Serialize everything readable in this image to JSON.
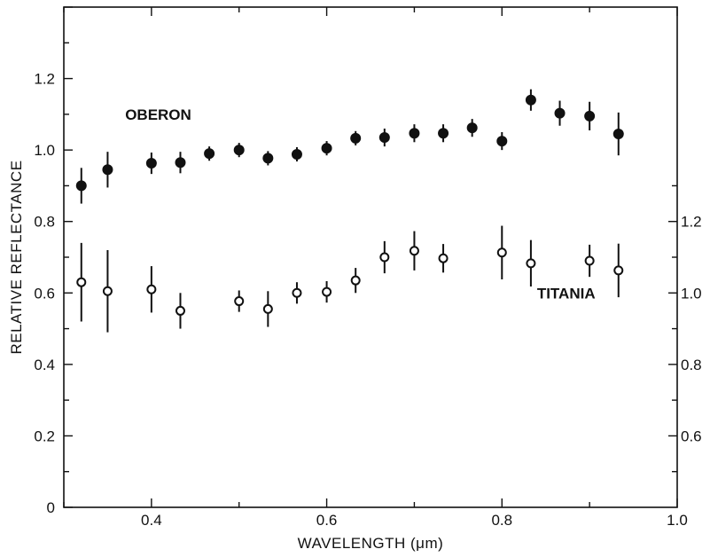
{
  "chart_data": {
    "type": "scatter",
    "title": "",
    "xlabel": "WAVELENGTH (μm)",
    "ylabel": "RELATIVE REFLECTANCE",
    "xlim": [
      0.3,
      1.0
    ],
    "ylim": [
      0,
      1.4
    ],
    "x_ticks": [
      {
        "value": 0.4,
        "label": "0.4"
      },
      {
        "value": 0.6,
        "label": "0.6"
      },
      {
        "value": 0.8,
        "label": "0.8"
      },
      {
        "value": 1.0,
        "label": "1.0"
      }
    ],
    "y_ticks_left": [
      {
        "value": 0,
        "label": "0"
      },
      {
        "value": 0.2,
        "label": "0.2"
      },
      {
        "value": 0.4,
        "label": "0.4"
      },
      {
        "value": 0.6,
        "label": "0.6"
      },
      {
        "value": 0.8,
        "label": "0.8"
      },
      {
        "value": 1.0,
        "label": "1.0"
      },
      {
        "value": 1.2,
        "label": "1.2"
      }
    ],
    "y_ticks_right": [
      {
        "value": 0.6,
        "label": "0.6"
      },
      {
        "value": 0.8,
        "label": "0.8"
      },
      {
        "value": 1.0,
        "label": "1.0"
      },
      {
        "value": 1.2,
        "label": "1.2"
      }
    ],
    "right_axis_offset": 0.4,
    "grid": false,
    "series": [
      {
        "name": "OBERON",
        "marker": "filled-circle",
        "axis": "left",
        "points": [
          {
            "x": 0.32,
            "y": 0.9,
            "err": 0.05
          },
          {
            "x": 0.35,
            "y": 0.945,
            "err": 0.05
          },
          {
            "x": 0.4,
            "y": 0.963,
            "err": 0.03
          },
          {
            "x": 0.433,
            "y": 0.965,
            "err": 0.03
          },
          {
            "x": 0.466,
            "y": 0.99,
            "err": 0.02
          },
          {
            "x": 0.5,
            "y": 1.0,
            "err": 0.02
          },
          {
            "x": 0.533,
            "y": 0.977,
            "err": 0.02
          },
          {
            "x": 0.566,
            "y": 0.988,
            "err": 0.02
          },
          {
            "x": 0.6,
            "y": 1.005,
            "err": 0.02
          },
          {
            "x": 0.633,
            "y": 1.033,
            "err": 0.02
          },
          {
            "x": 0.666,
            "y": 1.035,
            "err": 0.025
          },
          {
            "x": 0.7,
            "y": 1.047,
            "err": 0.025
          },
          {
            "x": 0.733,
            "y": 1.047,
            "err": 0.025
          },
          {
            "x": 0.766,
            "y": 1.062,
            "err": 0.025
          },
          {
            "x": 0.8,
            "y": 1.025,
            "err": 0.025
          },
          {
            "x": 0.833,
            "y": 1.14,
            "err": 0.03
          },
          {
            "x": 0.866,
            "y": 1.103,
            "err": 0.035
          },
          {
            "x": 0.9,
            "y": 1.095,
            "err": 0.04
          },
          {
            "x": 0.933,
            "y": 1.045,
            "err": 0.06
          }
        ]
      },
      {
        "name": "TITANIA",
        "marker": "open-circle",
        "axis": "right",
        "points": [
          {
            "x": 0.32,
            "y": 1.03,
            "err": 0.11
          },
          {
            "x": 0.35,
            "y": 1.005,
            "err": 0.115
          },
          {
            "x": 0.4,
            "y": 1.01,
            "err": 0.065
          },
          {
            "x": 0.433,
            "y": 0.95,
            "err": 0.05
          },
          {
            "x": 0.5,
            "y": 0.977,
            "err": 0.03
          },
          {
            "x": 0.533,
            "y": 0.955,
            "err": 0.05
          },
          {
            "x": 0.566,
            "y": 1.0,
            "err": 0.03
          },
          {
            "x": 0.6,
            "y": 1.003,
            "err": 0.03
          },
          {
            "x": 0.633,
            "y": 1.035,
            "err": 0.035
          },
          {
            "x": 0.666,
            "y": 1.1,
            "err": 0.045
          },
          {
            "x": 0.7,
            "y": 1.118,
            "err": 0.055
          },
          {
            "x": 0.733,
            "y": 1.097,
            "err": 0.04
          },
          {
            "x": 0.8,
            "y": 1.113,
            "err": 0.075
          },
          {
            "x": 0.833,
            "y": 1.083,
            "err": 0.065
          },
          {
            "x": 0.9,
            "y": 1.09,
            "err": 0.045
          },
          {
            "x": 0.933,
            "y": 1.063,
            "err": 0.075
          }
        ]
      }
    ],
    "annotations": [
      {
        "text": "OBERON",
        "x": 0.37,
        "y": 1.1,
        "axis": "left"
      },
      {
        "text": "TITANIA",
        "x": 0.84,
        "y": 1.0,
        "axis": "right"
      }
    ]
  }
}
